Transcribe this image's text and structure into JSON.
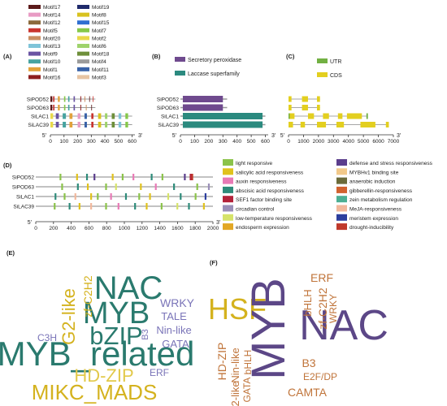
{
  "panels": {
    "A": {
      "label": "(A)",
      "legend": [
        {
          "name": "Motif17",
          "color": "#5b1a1a"
        },
        {
          "name": "Motif19",
          "color": "#1f2a6b"
        },
        {
          "name": "Motif14",
          "color": "#e89bc4"
        },
        {
          "name": "Motif8",
          "color": "#d8c21f"
        },
        {
          "name": "Motif12",
          "color": "#8b6a3c"
        },
        {
          "name": "Motif15",
          "color": "#2f6fd1"
        },
        {
          "name": "Motif5",
          "color": "#c9352f"
        },
        {
          "name": "Motif7",
          "color": "#86c84a"
        },
        {
          "name": "Motif20",
          "color": "#c98f63"
        },
        {
          "name": "Motif2",
          "color": "#e9d94a"
        },
        {
          "name": "Motif13",
          "color": "#7fc4d8"
        },
        {
          "name": "Motif6",
          "color": "#9fd36c"
        },
        {
          "name": "Motif9",
          "color": "#6a54a3"
        },
        {
          "name": "Motif18",
          "color": "#6e8f3a"
        },
        {
          "name": "Motif10",
          "color": "#47a3a0"
        },
        {
          "name": "Motif4",
          "color": "#9b9b9b"
        },
        {
          "name": "Motif1",
          "color": "#e2a23a"
        },
        {
          "name": "Motif11",
          "color": "#3a63a8"
        },
        {
          "name": "Motif16",
          "color": "#8e1e1e"
        },
        {
          "name": "Motif3",
          "color": "#e7c4a3"
        }
      ],
      "genes": [
        "SiPOD52",
        "SiPOD63",
        "SiLAC1",
        "SiLAC39"
      ],
      "axis_start": "5'",
      "axis_end": "3'",
      "ticks": [
        0,
        100,
        200,
        300,
        400,
        500,
        600
      ]
    },
    "B": {
      "label": "(B)",
      "legend": [
        {
          "name": "Secretory peroxidase",
          "color": "#6f4a8e"
        },
        {
          "name": "Laccase superfamily",
          "color": "#2b8a7f"
        }
      ],
      "genes": [
        "SiPOD52",
        "SiPOD63",
        "SiLAC1",
        "SiLAC39"
      ],
      "axis_start": "5'",
      "axis_end": "3'",
      "ticks": [
        0,
        100,
        200,
        300,
        400,
        500,
        600
      ]
    },
    "C": {
      "label": "(C)",
      "legend": [
        {
          "name": "UTR",
          "color": "#72b043"
        },
        {
          "name": "CDS",
          "color": "#e3cf1f"
        }
      ],
      "axis_start": "5'",
      "axis_end": "3'",
      "ticks": [
        0,
        1000,
        2000,
        3000,
        4000,
        5000,
        6000,
        7000
      ]
    },
    "D": {
      "label": "(D)",
      "genes": [
        "SiPOD52",
        "SiPOD63",
        "SiLAC1",
        "SiLAC39"
      ],
      "axis_start": "5'",
      "axis_end": "3'",
      "ticks": [
        0,
        200,
        400,
        600,
        800,
        1000,
        1200,
        1400,
        1600,
        1800,
        2000
      ],
      "legend": [
        {
          "name": "light responsive",
          "color": "#8bc34a"
        },
        {
          "name": "defense and stress responsiveness",
          "color": "#5b3e8c"
        },
        {
          "name": "salicylic acid responsiveness",
          "color": "#e0c21d"
        },
        {
          "name": "MYBHv1 binding site",
          "color": "#f2c98a"
        },
        {
          "name": "auxin responsiveness",
          "color": "#e87ab6"
        },
        {
          "name": "anaerobic induction",
          "color": "#6b6b3a"
        },
        {
          "name": "abscisic acid responsiveness",
          "color": "#2e8b7a"
        },
        {
          "name": "gibberellin-responsiveness",
          "color": "#d2622f"
        },
        {
          "name": "SEF1 factor binding site",
          "color": "#b3223a"
        },
        {
          "name": "zein metabolism regulation",
          "color": "#4caf93"
        },
        {
          "name": "circadian control",
          "color": "#9a8fb8"
        },
        {
          "name": "MeJA-responsiveness",
          "color": "#f1b89c"
        },
        {
          "name": "low-temperature responsiveness",
          "color": "#d6e36a"
        },
        {
          "name": "meristem expression",
          "color": "#2c3e9e"
        },
        {
          "name": "endosperm expression",
          "color": "#e2a724"
        },
        {
          "name": "drought-inducibility",
          "color": "#c0392b"
        }
      ]
    },
    "E": {
      "label": "(E)",
      "words": [
        {
          "text": "NAC",
          "color": "#2a7a6e"
        },
        {
          "text": "MYB",
          "color": "#2a7a6e"
        },
        {
          "text": "bZIP",
          "color": "#2a7a6e"
        },
        {
          "text": "MYB_related",
          "color": "#2a7a6e"
        },
        {
          "text": "G2-like",
          "color": "#d4b21e"
        },
        {
          "text": "zf-C2H2",
          "color": "#d4b21e"
        },
        {
          "text": "WRKY",
          "color": "#7a74b8"
        },
        {
          "text": "TALE",
          "color": "#7a74b8"
        },
        {
          "text": "Nin-like",
          "color": "#7a74b8"
        },
        {
          "text": "GATA",
          "color": "#7a74b8"
        },
        {
          "text": "B3",
          "color": "#7a74b8"
        },
        {
          "text": "C3H",
          "color": "#7a74b8"
        },
        {
          "text": "HD-ZIP",
          "color": "#e2c94a"
        },
        {
          "text": "ERF",
          "color": "#7a74b8"
        },
        {
          "text": "MIKC_MADS",
          "color": "#d4b21e"
        }
      ]
    },
    "F": {
      "label": "(F)",
      "words": [
        {
          "text": "HSF",
          "color": "#d4b21e"
        },
        {
          "text": "MYB",
          "color": "#5c4787"
        },
        {
          "text": "NAC",
          "color": "#5c4787"
        },
        {
          "text": "ERF",
          "color": "#c0743a"
        },
        {
          "text": "bHLH",
          "color": "#c0743a"
        },
        {
          "text": "zf-C2H2",
          "color": "#c0743a"
        },
        {
          "text": "WRKY",
          "color": "#c0743a"
        },
        {
          "text": "HD-ZIP",
          "color": "#c0743a"
        },
        {
          "text": "Nin-like",
          "color": "#c0743a"
        },
        {
          "text": "bHLH",
          "color": "#c0743a"
        },
        {
          "text": "G2-like",
          "color": "#c0743a"
        },
        {
          "text": "GATA",
          "color": "#c0743a"
        },
        {
          "text": "B3",
          "color": "#c0743a"
        },
        {
          "text": "E2F/DP",
          "color": "#c0743a"
        },
        {
          "text": "CAMTA",
          "color": "#c0743a"
        }
      ]
    }
  }
}
